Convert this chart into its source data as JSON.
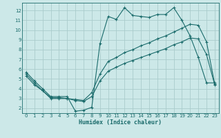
{
  "title": "",
  "xlabel": "Humidex (Indice chaleur)",
  "bg_color": "#cce8e8",
  "grid_color": "#aacccc",
  "line_color": "#1a6b6b",
  "xlim": [
    -0.5,
    23.5
  ],
  "ylim": [
    1.5,
    12.8
  ],
  "xticks": [
    0,
    1,
    2,
    3,
    4,
    5,
    6,
    7,
    8,
    9,
    10,
    11,
    12,
    13,
    14,
    15,
    16,
    17,
    18,
    19,
    20,
    21,
    22,
    23
  ],
  "yticks": [
    2,
    3,
    4,
    5,
    6,
    7,
    8,
    9,
    10,
    11,
    12
  ],
  "line1_x": [
    0,
    1,
    2,
    3,
    4,
    5,
    6,
    7,
    8,
    9,
    10,
    11,
    12,
    13,
    14,
    15,
    16,
    17,
    18,
    19,
    20,
    21,
    22,
    23
  ],
  "line1_y": [
    5.7,
    4.8,
    4.0,
    3.2,
    3.2,
    3.2,
    1.7,
    1.8,
    2.1,
    8.6,
    11.4,
    11.1,
    12.3,
    11.5,
    11.4,
    11.3,
    11.6,
    11.6,
    12.3,
    11.0,
    9.4,
    7.2,
    4.6,
    4.6
  ],
  "line2_x": [
    0,
    1,
    2,
    3,
    4,
    5,
    6,
    7,
    8,
    9,
    10,
    11,
    12,
    13,
    14,
    15,
    16,
    17,
    18,
    19,
    20,
    21,
    22,
    23
  ],
  "line2_y": [
    5.5,
    4.6,
    3.8,
    3.1,
    3.1,
    3.0,
    2.9,
    2.8,
    3.6,
    5.5,
    6.8,
    7.2,
    7.7,
    8.0,
    8.4,
    8.7,
    9.1,
    9.4,
    9.8,
    10.2,
    10.6,
    10.5,
    8.8,
    4.5
  ],
  "line3_x": [
    0,
    1,
    2,
    3,
    4,
    5,
    6,
    7,
    8,
    9,
    10,
    11,
    12,
    13,
    14,
    15,
    16,
    17,
    18,
    19,
    20,
    21,
    22,
    23
  ],
  "line3_y": [
    5.3,
    4.4,
    3.8,
    3.0,
    3.0,
    3.0,
    2.8,
    2.7,
    3.2,
    4.8,
    5.8,
    6.2,
    6.6,
    6.9,
    7.2,
    7.5,
    7.8,
    8.1,
    8.5,
    8.8,
    9.2,
    9.1,
    7.5,
    4.4
  ]
}
